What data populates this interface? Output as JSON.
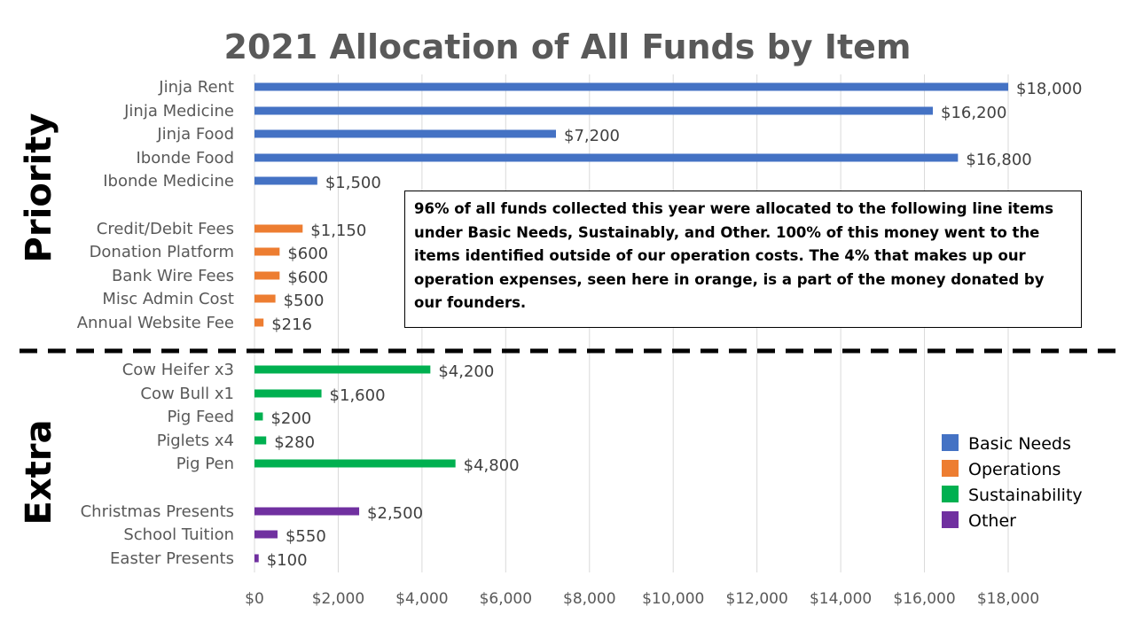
{
  "chart_data": {
    "type": "bar",
    "orientation": "horizontal",
    "title": "2021 Allocation of All Funds by Item",
    "xlim": [
      0,
      18000
    ],
    "x_ticks": [
      "$0",
      "$2,000",
      "$4,000",
      "$6,000",
      "$8,000",
      "$10,000",
      "$12,000",
      "$14,000",
      "$16,000",
      "$18,000"
    ],
    "x_tick_values": [
      0,
      2000,
      4000,
      6000,
      8000,
      10000,
      12000,
      14000,
      16000,
      18000
    ],
    "grid": true,
    "legend_position": "bottom-right",
    "groups": [
      "Priority",
      "Extra"
    ],
    "series": [
      {
        "name": "Basic Needs",
        "color": "#4472C4"
      },
      {
        "name": "Operations",
        "color": "#ED7D31"
      },
      {
        "name": "Sustainability",
        "color": "#00B050"
      },
      {
        "name": "Other",
        "color": "#7030A0"
      }
    ],
    "bars": [
      {
        "label": "Jinja Rent",
        "value": 18000,
        "value_label": "$18,000",
        "series": "Basic Needs",
        "group": "Priority"
      },
      {
        "label": "Jinja Medicine",
        "value": 16200,
        "value_label": "$16,200",
        "series": "Basic Needs",
        "group": "Priority"
      },
      {
        "label": "Jinja Food",
        "value": 7200,
        "value_label": "$7,200",
        "series": "Basic Needs",
        "group": "Priority"
      },
      {
        "label": "Ibonde Food",
        "value": 16800,
        "value_label": "$16,800",
        "series": "Basic Needs",
        "group": "Priority"
      },
      {
        "label": "Ibonde Medicine",
        "value": 1500,
        "value_label": "$1,500",
        "series": "Basic Needs",
        "group": "Priority"
      },
      {
        "label": "Credit/Debit Fees",
        "value": 1150,
        "value_label": "$1,150",
        "series": "Operations",
        "group": "Priority"
      },
      {
        "label": "Donation Platform",
        "value": 600,
        "value_label": "$600",
        "series": "Operations",
        "group": "Priority"
      },
      {
        "label": "Bank Wire Fees",
        "value": 600,
        "value_label": "$600",
        "series": "Operations",
        "group": "Priority"
      },
      {
        "label": "Misc Admin Cost",
        "value": 500,
        "value_label": "$500",
        "series": "Operations",
        "group": "Priority"
      },
      {
        "label": "Annual Website Fee",
        "value": 216,
        "value_label": "$216",
        "series": "Operations",
        "group": "Priority"
      },
      {
        "label": "Cow Heifer x3",
        "value": 4200,
        "value_label": "$4,200",
        "series": "Sustainability",
        "group": "Extra"
      },
      {
        "label": "Cow Bull x1",
        "value": 1600,
        "value_label": "$1,600",
        "series": "Sustainability",
        "group": "Extra"
      },
      {
        "label": "Pig Feed",
        "value": 200,
        "value_label": "$200",
        "series": "Sustainability",
        "group": "Extra"
      },
      {
        "label": "Piglets x4",
        "value": 280,
        "value_label": "$280",
        "series": "Sustainability",
        "group": "Extra"
      },
      {
        "label": "Pig Pen",
        "value": 4800,
        "value_label": "$4,800",
        "series": "Sustainability",
        "group": "Extra"
      },
      {
        "label": "Christmas Presents",
        "value": 2500,
        "value_label": "$2,500",
        "series": "Other",
        "group": "Extra"
      },
      {
        "label": "School Tuition",
        "value": 550,
        "value_label": "$550",
        "series": "Other",
        "group": "Extra"
      },
      {
        "label": "Easter Presents",
        "value": 100,
        "value_label": "$100",
        "series": "Other",
        "group": "Extra"
      }
    ],
    "annotation": "96% of all funds collected this year were allocated to the following line items under Basic Needs, Sustainably, and Other. 100% of this money went to the items identified outside of our operation costs. The 4% that makes up our operation expenses, seen here in orange, is a part of the money donated by our founders."
  }
}
